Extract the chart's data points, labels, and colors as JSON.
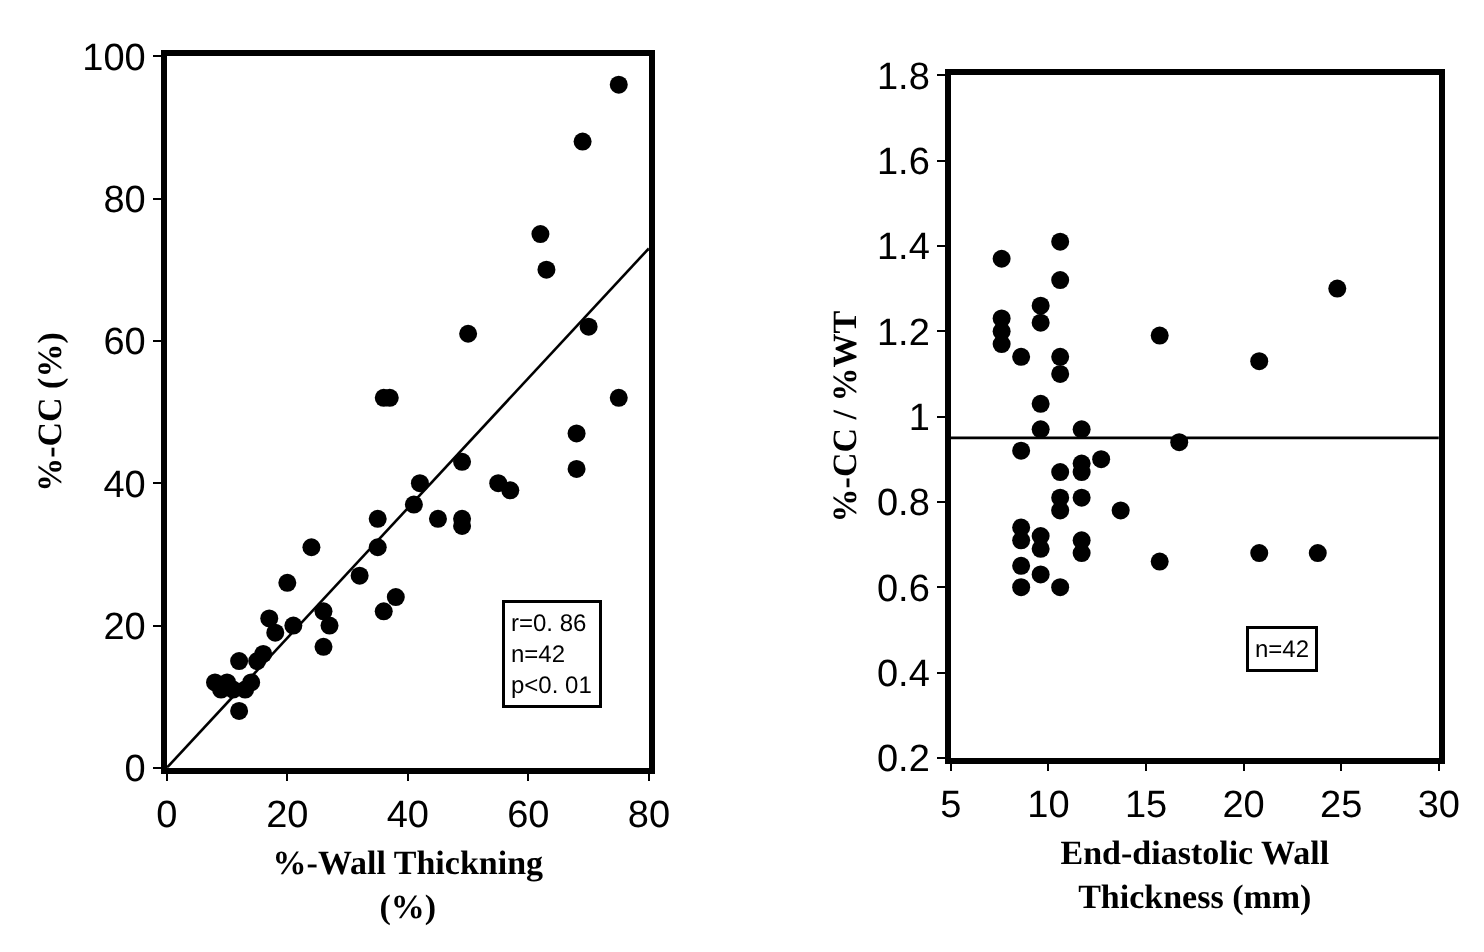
{
  "chart_data": [
    {
      "type": "scatter",
      "xlabel": "%-Wall Thickning\n(%)",
      "ylabel": "%-CC (%)",
      "xlim": [
        0,
        80
      ],
      "ylim": [
        0,
        100
      ],
      "xticks": [
        0,
        20,
        40,
        60,
        80
      ],
      "yticks": [
        0,
        20,
        40,
        60,
        80,
        100
      ],
      "marker": "circle",
      "x": [
        75,
        69,
        62,
        63,
        70,
        50,
        75,
        36,
        37,
        68,
        68,
        55,
        57,
        49,
        49,
        49,
        45,
        42,
        41,
        35,
        35,
        32,
        24,
        20,
        21,
        17,
        18,
        26,
        26,
        27,
        36,
        38,
        16,
        15,
        12,
        12,
        8,
        9,
        10,
        11,
        13,
        14
      ],
      "series": [
        {
          "color": "#000000",
          "values": [
            96,
            88,
            75,
            70,
            62,
            61,
            52,
            52,
            52,
            47,
            42,
            40,
            39,
            43,
            35,
            34,
            35,
            40,
            37,
            35,
            31,
            27,
            31,
            26,
            20,
            21,
            19,
            22,
            17,
            20,
            22,
            24,
            16,
            15,
            15,
            8,
            12,
            11,
            12,
            11,
            11,
            12
          ]
        },
        {
          "type": "line",
          "color": "#000000",
          "marker": "none",
          "x": [
            0,
            80
          ],
          "values": [
            0,
            73
          ]
        }
      ],
      "annotations": [
        "r=0. 86\nn=42\np<0. 01"
      ]
    },
    {
      "type": "scatter",
      "xlabel": "End-diastolic Wall\nThickness (mm)",
      "ylabel": "%-CC / %WT",
      "xlim": [
        5,
        30
      ],
      "ylim": [
        0.2,
        1.8
      ],
      "xticks": [
        5,
        10,
        15,
        20,
        25,
        30
      ],
      "yticks": [
        0.2,
        0.4,
        0.6,
        0.8,
        1,
        1.2,
        1.4,
        1.6,
        1.8
      ],
      "marker": "circle",
      "x": [
        7.6,
        10.6,
        10.6,
        9.6,
        9.6,
        7.6,
        7.6,
        7.6,
        8.6,
        10.6,
        10.6,
        15.7,
        24.8,
        20.8,
        9.6,
        9.6,
        11.7,
        8.6,
        16.7,
        12.7,
        11.7,
        11.7,
        10.6,
        10.6,
        10.6,
        11.7,
        13.7,
        8.6,
        8.6,
        9.6,
        9.6,
        11.7,
        11.7,
        15.7,
        20.8,
        23.8,
        8.6,
        8.6,
        9.6,
        10.6
      ],
      "series": [
        {
          "color": "#000000",
          "values": [
            1.37,
            1.41,
            1.32,
            1.26,
            1.22,
            1.23,
            1.2,
            1.17,
            1.14,
            1.14,
            1.1,
            1.19,
            1.3,
            1.13,
            1.03,
            0.97,
            0.97,
            0.92,
            0.94,
            0.9,
            0.89,
            0.87,
            0.87,
            0.81,
            0.78,
            0.81,
            0.78,
            0.74,
            0.71,
            0.72,
            0.69,
            0.71,
            0.68,
            0.66,
            0.68,
            0.68,
            0.65,
            0.6,
            0.63,
            0.6
          ]
        }
      ],
      "ref_lines": [
        {
          "axis": "y",
          "value": 0.95,
          "color": "#000000",
          "line_style": "solid"
        }
      ],
      "annotations": [
        "n=42"
      ]
    }
  ]
}
